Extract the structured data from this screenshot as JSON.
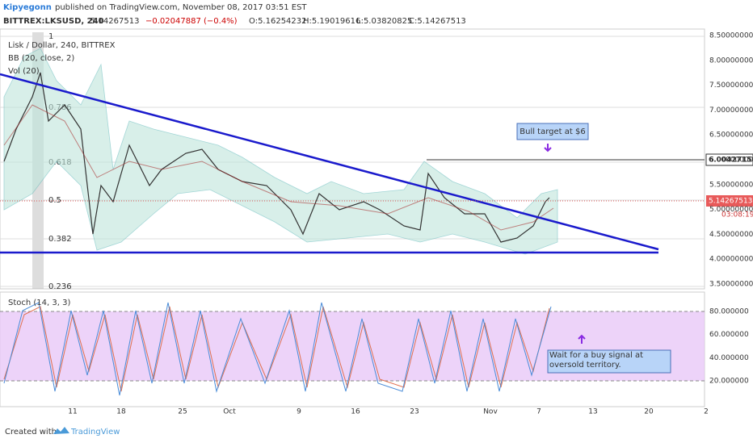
{
  "header": {
    "author": "Kipyegonn",
    "published": "published on TradingView.com, November 08, 2017 03:51 EST",
    "symbol": "BITTREX:LKSUSD, 240",
    "price": "5.14267513",
    "change": "−0.02047887 (−0.4%)",
    "open": "O:5.16254232",
    "high": "H:5.19019616",
    "low": "L:5.03820825",
    "close": "C:5.14267513"
  },
  "legend": {
    "main": "Lisk / Dollar, 240, BITTREX",
    "bb": "BB (20, close, 2)",
    "vol": "Vol (20)",
    "stoch": "Stoch (14, 3, 3)"
  },
  "price_axis": [
    "8.50000000",
    "8.00000000",
    "7.50000000",
    "7.00000000",
    "6.50000000",
    "6.00000000",
    "5.50000000",
    "5.00000000",
    "4.50000000",
    "4.00000000",
    "3.50000000"
  ],
  "stoch_axis": [
    "80.000000",
    "60.000000",
    "40.000000",
    "20.000000"
  ],
  "fib_levels": [
    "1",
    "0.786",
    "0.618",
    "0.5",
    "0.382",
    "0.236"
  ],
  "time_axis": [
    "11",
    "18",
    "25",
    "Oct",
    "9",
    "16",
    "23",
    "Nov",
    "7",
    "13",
    "20",
    "2"
  ],
  "price_tags": {
    "target": "6.00427158",
    "last": "5.14267513",
    "countdown": "03:08:19"
  },
  "annotations": {
    "bull": "Bull target at $6",
    "stoch": "Wait for a buy signal at oversold territory."
  },
  "footer": {
    "created": "Created with",
    "brand": "TradingView"
  }
}
